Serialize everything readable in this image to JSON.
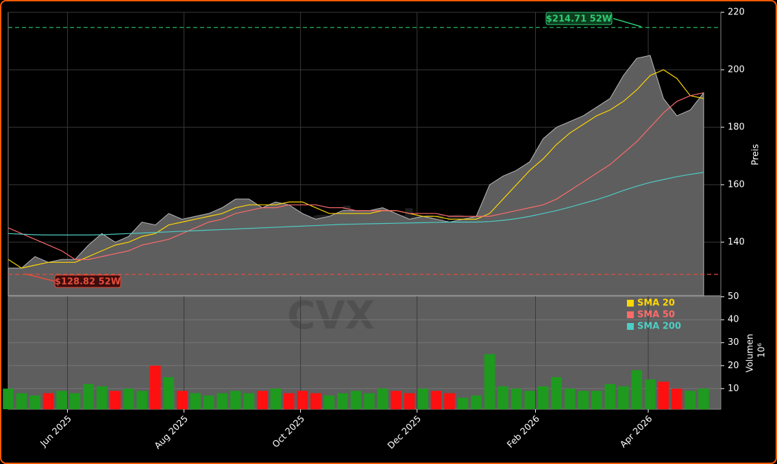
{
  "chart_data": {
    "type": "stock",
    "watermark": "signale.trade",
    "symbol": "CVX",
    "x": [
      0,
      7,
      14,
      21,
      28,
      35,
      42,
      49,
      56,
      63,
      70,
      77,
      84,
      91,
      98,
      105,
      112,
      119,
      126,
      133,
      140,
      147,
      154,
      161,
      168,
      175,
      182,
      189,
      196,
      203,
      210,
      217,
      224,
      231,
      238,
      245,
      252,
      259,
      266,
      273,
      280,
      287,
      294,
      301,
      308,
      315,
      322,
      329,
      336,
      343,
      350,
      357,
      364
    ],
    "xlim": [
      0,
      373
    ],
    "xticks": [
      {
        "value": 31,
        "label": "Jun 2025"
      },
      {
        "value": 92,
        "label": "Aug 2025"
      },
      {
        "value": 153,
        "label": "Oct 2025"
      },
      {
        "value": 214,
        "label": "Dec 2025"
      },
      {
        "value": 276,
        "label": "Feb 2026"
      },
      {
        "value": 335,
        "label": "Apr 2026"
      }
    ],
    "values": [
      131,
      131,
      135,
      133,
      134,
      134,
      139,
      143,
      140,
      142,
      147,
      146,
      150,
      148,
      149,
      150,
      152,
      155,
      155,
      152,
      154,
      153,
      150,
      148,
      149,
      151,
      151,
      151,
      152,
      150,
      148,
      149,
      148,
      147,
      148,
      149,
      160,
      163,
      165,
      168,
      176,
      180,
      182,
      184,
      187,
      190,
      198,
      204,
      205,
      190,
      184,
      186,
      192
    ],
    "color": "#5e5e5e",
    "up_color": "#1e9a1e",
    "down_color": "#ff1010",
    "ylim": [
      121.4,
      220
    ],
    "yticks": [
      140,
      160,
      180,
      200,
      220
    ],
    "ylabel": "Preis",
    "grid": true,
    "series": [
      {
        "name": "SMA 20",
        "color": "#ffd700",
        "values": [
          134,
          131,
          132,
          133,
          133,
          133,
          135,
          137,
          139,
          140,
          142,
          143,
          146,
          147,
          148,
          149,
          150,
          152,
          153,
          153,
          153,
          154,
          154,
          152,
          150,
          150,
          150,
          150,
          151,
          151,
          150,
          149,
          149,
          148,
          148,
          148,
          150,
          155,
          160,
          165,
          169,
          174,
          178,
          181,
          184,
          186,
          189,
          193,
          198,
          200,
          197,
          191,
          190
        ]
      },
      {
        "name": "SMA 50",
        "color": "#ff6b6b",
        "values": [
          145,
          143,
          141,
          139,
          137,
          134,
          134,
          135,
          136,
          137,
          139,
          140,
          141,
          143,
          145,
          147,
          148,
          150,
          151,
          152,
          152,
          153,
          153,
          153,
          152,
          152,
          151,
          151,
          151,
          151,
          150,
          150,
          150,
          149,
          149,
          149,
          149,
          150,
          151,
          152,
          153,
          155,
          158,
          161,
          164,
          167,
          171,
          175,
          180,
          185,
          189,
          191,
          192
        ]
      },
      {
        "name": "SMA 200",
        "color": "#4ecdc4",
        "values": [
          143,
          142.8,
          142.6,
          142.5,
          142.5,
          142.5,
          142.5,
          142.6,
          142.8,
          143,
          143.2,
          143.4,
          143.6,
          143.8,
          144,
          144.2,
          144.4,
          144.6,
          144.8,
          145,
          145.2,
          145.4,
          145.6,
          145.8,
          146,
          146.2,
          146.3,
          146.4,
          146.5,
          146.6,
          146.7,
          146.8,
          146.9,
          147,
          147,
          147,
          147.2,
          147.6,
          148.2,
          149,
          150,
          151,
          152.2,
          153.5,
          154.8,
          156.3,
          158,
          159.5,
          160.8,
          161.8,
          162.8,
          163.6,
          164.3
        ]
      }
    ],
    "high_line": {
      "value": 214.71,
      "label": "$214.71 52W",
      "color": "#2ecc71"
    },
    "low_line": {
      "value": 128.82,
      "label": "$128.82 52W",
      "color": "#e74c3c"
    },
    "volume": {
      "values": [
        10,
        8,
        7,
        8,
        9,
        8,
        12,
        11,
        9,
        10,
        9,
        20,
        15,
        9,
        8,
        7,
        8,
        9,
        8,
        9,
        10,
        8,
        9,
        8,
        7,
        8,
        9,
        8,
        10,
        9,
        8,
        10,
        9,
        8,
        6,
        7,
        25,
        11,
        10,
        9,
        11,
        15,
        10,
        9,
        9,
        12,
        11,
        18,
        14,
        13,
        10,
        9,
        10
      ],
      "ylim": [
        1,
        50.5
      ],
      "yticks": [
        10,
        20,
        30,
        40,
        50
      ],
      "ylabel": "Volumen",
      "unit": "10⁶"
    }
  }
}
